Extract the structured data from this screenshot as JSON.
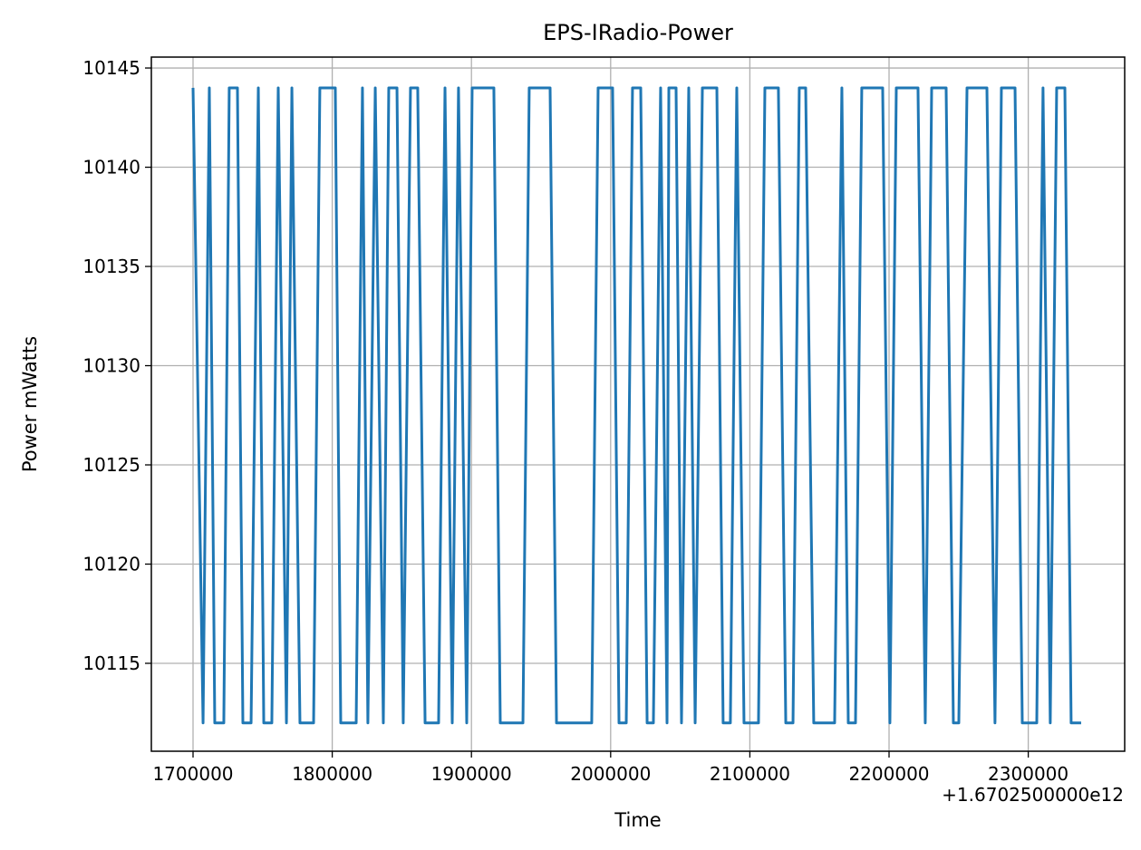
{
  "chart_data": {
    "type": "line",
    "title": "EPS-IRadio-Power",
    "x_label": "Time",
    "y_label": "Power mWatts",
    "x_offset_text": "+1.6702500000e12",
    "x": [
      1700000,
      1707200,
      1711700,
      1715600,
      1722100,
      1726000,
      1731900,
      1735800,
      1741700,
      1746900,
      1750800,
      1756600,
      1761200,
      1767100,
      1771000,
      1776800,
      1786600,
      1791100,
      1802200,
      1806100,
      1817200,
      1821700,
      1825600,
      1830900,
      1836700,
      1840600,
      1846500,
      1851000,
      1856200,
      1861400,
      1866700,
      1876400,
      1881000,
      1886200,
      1890700,
      1896600,
      1900500,
      1916100,
      1920700,
      1937000,
      1941500,
      1956500,
      1961100,
      1986400,
      1991000,
      2001400,
      2006000,
      2011200,
      2015700,
      2021600,
      2026200,
      2030700,
      2035900,
      2040500,
      2041800,
      2047000,
      2050900,
      2056100,
      2060700,
      2065900,
      2076300,
      2080800,
      2086000,
      2090600,
      2095800,
      2106200,
      2110800,
      2120500,
      2125800,
      2131000,
      2135500,
      2140100,
      2145900,
      2160900,
      2166100,
      2170700,
      2175900,
      2180400,
      2195400,
      2200600,
      2205200,
      2220800,
      2226000,
      2230600,
      2241000,
      2246200,
      2250100,
      2256000,
      2270300,
      2276100,
      2280700,
      2290500,
      2295700,
      2306100,
      2310600,
      2315800,
      2320400,
      2326300,
      2330800,
      2338000
    ],
    "values": [
      10144,
      10112,
      10144,
      10112,
      10112,
      10144,
      10144,
      10112,
      10112,
      10144,
      10112,
      10112,
      10144,
      10112,
      10144,
      10112,
      10112,
      10144,
      10144,
      10112,
      10112,
      10144,
      10112,
      10144,
      10112,
      10144,
      10144,
      10112,
      10144,
      10144,
      10112,
      10112,
      10144,
      10112,
      10144,
      10112,
      10144,
      10144,
      10112,
      10112,
      10144,
      10144,
      10112,
      10112,
      10144,
      10144,
      10112,
      10112,
      10144,
      10144,
      10112,
      10112,
      10144,
      10112,
      10144,
      10144,
      10112,
      10144,
      10112,
      10144,
      10144,
      10112,
      10112,
      10144,
      10112,
      10112,
      10144,
      10144,
      10112,
      10112,
      10144,
      10144,
      10112,
      10112,
      10144,
      10112,
      10112,
      10144,
      10144,
      10112,
      10144,
      10144,
      10112,
      10144,
      10144,
      10112,
      10112,
      10144,
      10144,
      10112,
      10144,
      10144,
      10112,
      10112,
      10144,
      10112,
      10144,
      10144,
      10112,
      10112
    ],
    "color": "#1f77b4",
    "xlim": [
      1670050,
      2369270
    ],
    "xticks": [
      1700000,
      1800000,
      1900000,
      2000000,
      2100000,
      2200000,
      2300000
    ],
    "ylim": [
      10110.57,
      10145.55
    ],
    "yticks": [
      10115,
      10120,
      10125,
      10130,
      10135,
      10140,
      10145
    ],
    "grid": true
  }
}
